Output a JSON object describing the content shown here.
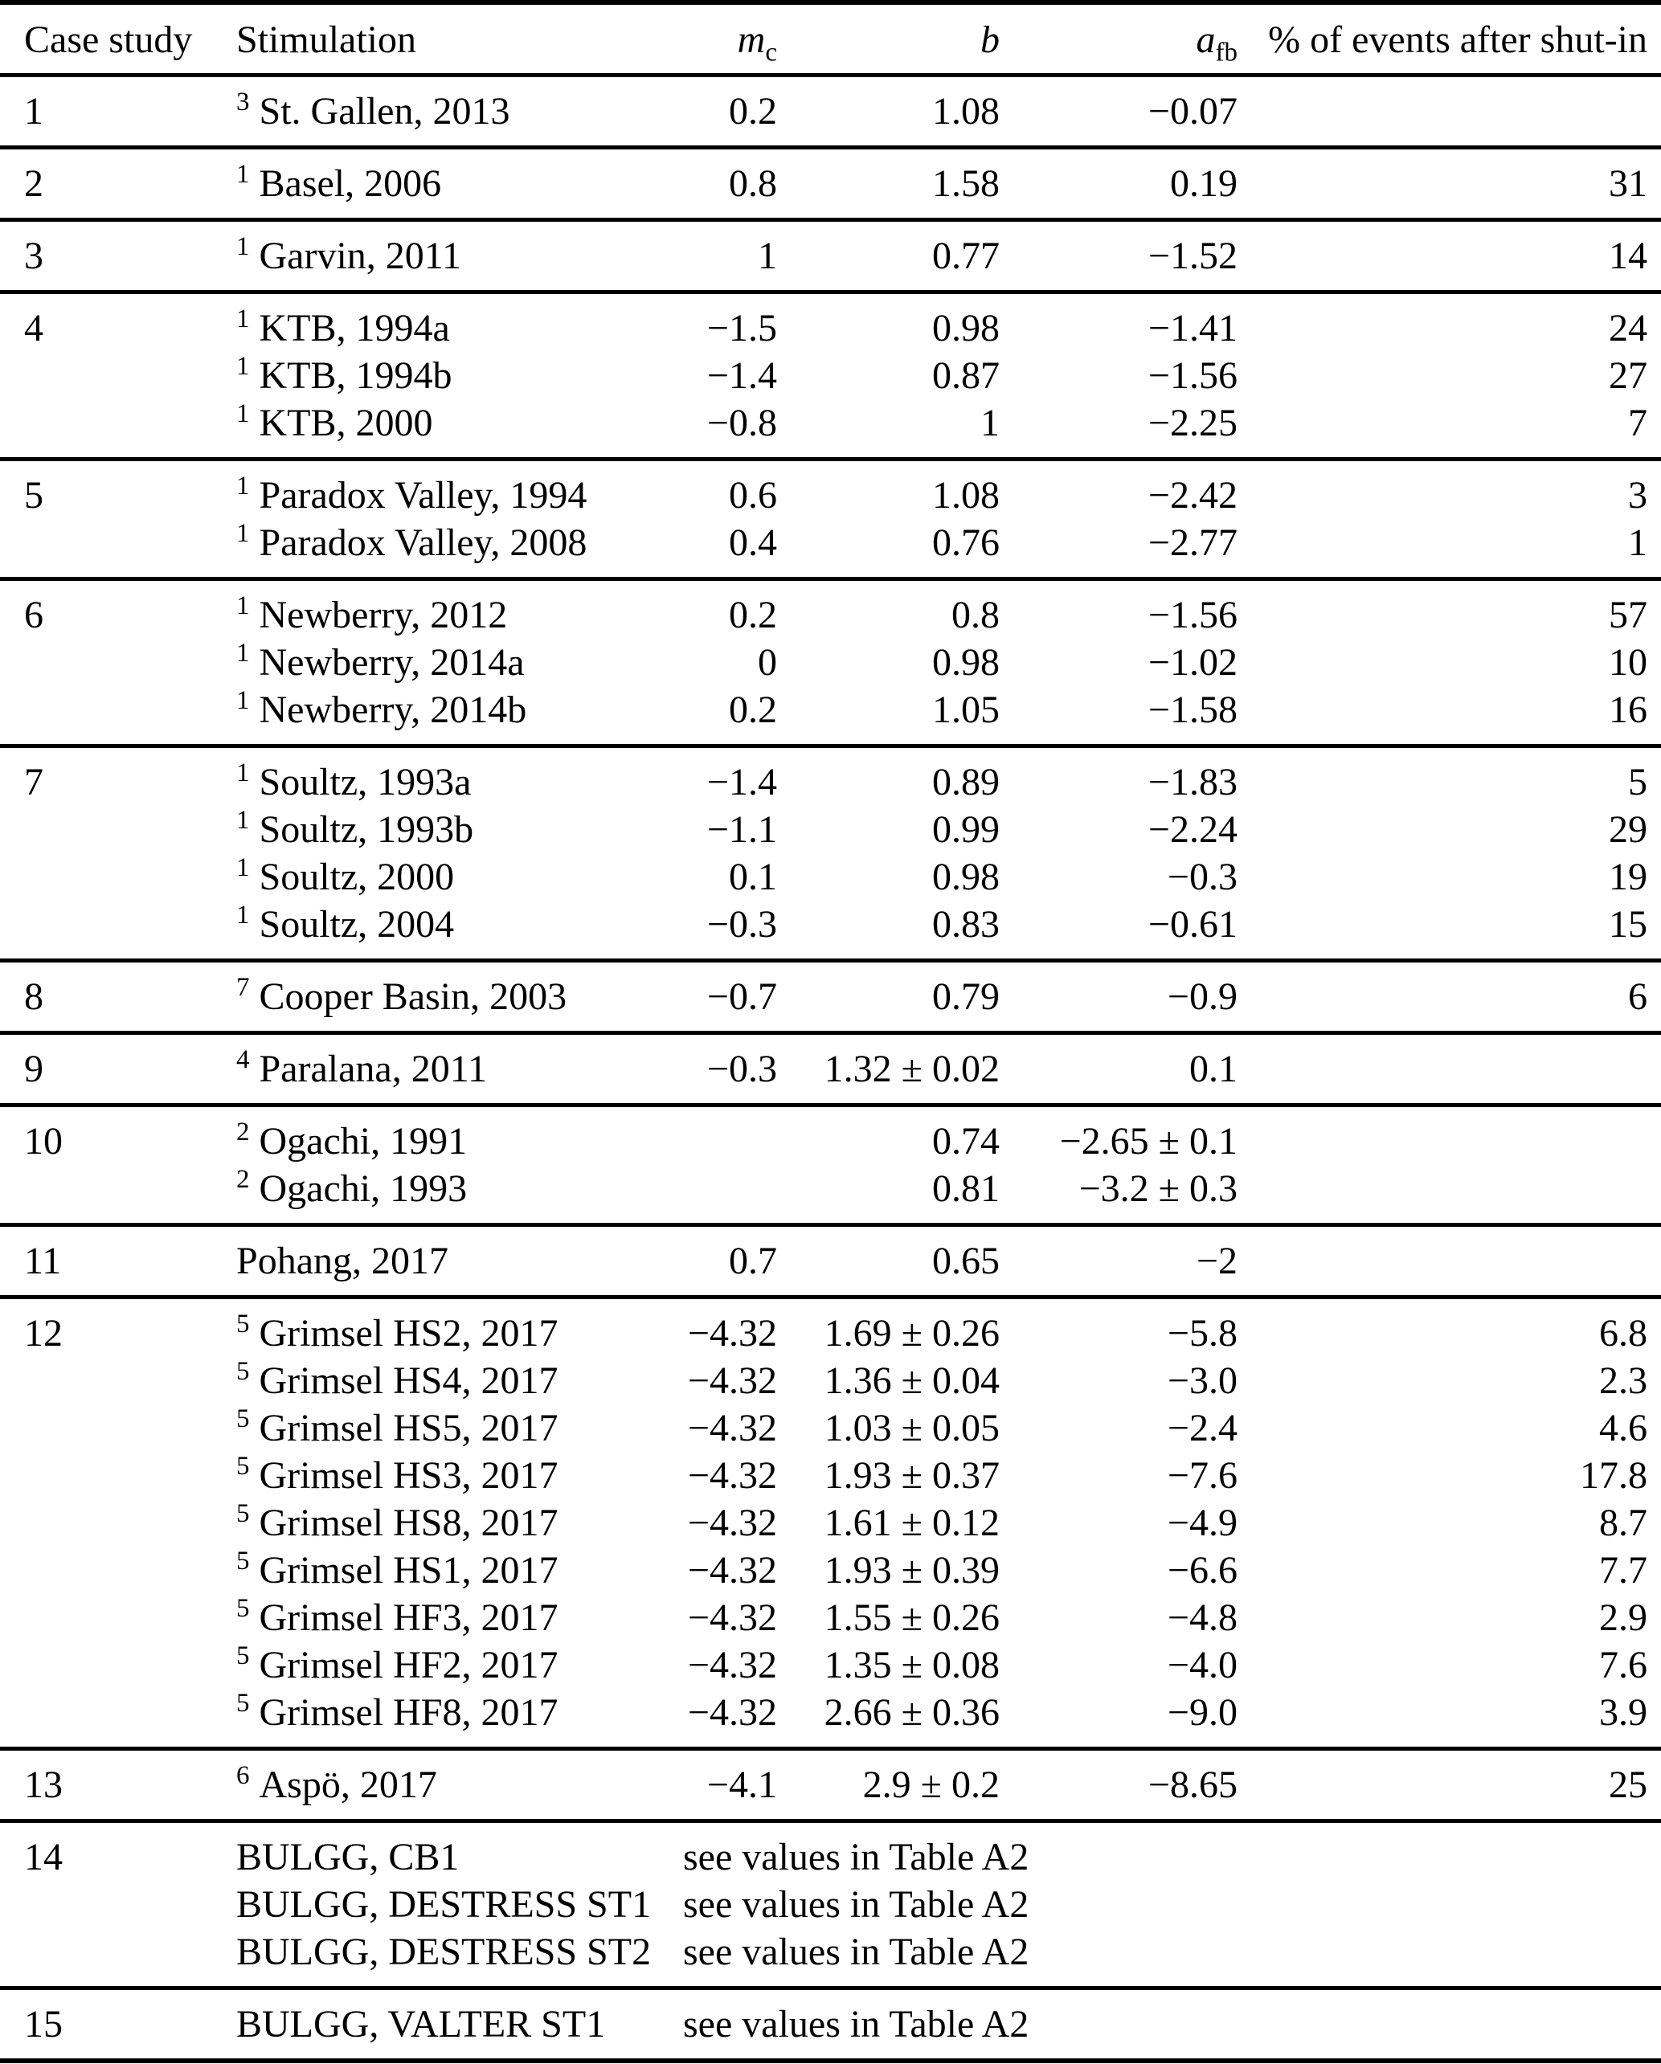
{
  "table": {
    "columns": [
      {
        "key": "case",
        "label": "Case study"
      },
      {
        "key": "stim",
        "label": "Stimulation"
      },
      {
        "key": "mc",
        "label_main": "m",
        "label_sub": "c"
      },
      {
        "key": "b",
        "label": "b"
      },
      {
        "key": "afb",
        "label_main": "a",
        "label_sub": "fb"
      },
      {
        "key": "pct",
        "label": "% of events after shut-in"
      }
    ],
    "see_values_text": "see values in Table A2",
    "groups": [
      {
        "case": "1",
        "rows": [
          {
            "sup": "3",
            "name": "St. Gallen, 2013",
            "mc": "0.2",
            "b": "1.08",
            "afb": "−0.07",
            "pct": ""
          }
        ]
      },
      {
        "case": "2",
        "rows": [
          {
            "sup": "1",
            "name": "Basel, 2006",
            "mc": "0.8",
            "b": "1.58",
            "afb": "0.19",
            "pct": "31"
          }
        ]
      },
      {
        "case": "3",
        "rows": [
          {
            "sup": "1",
            "name": "Garvin, 2011",
            "mc": "1",
            "b": "0.77",
            "afb": "−1.52",
            "pct": "14"
          }
        ]
      },
      {
        "case": "4",
        "rows": [
          {
            "sup": "1",
            "name": "KTB, 1994a",
            "mc": "−1.5",
            "b": "0.98",
            "afb": "−1.41",
            "pct": "24"
          },
          {
            "sup": "1",
            "name": "KTB, 1994b",
            "mc": "−1.4",
            "b": "0.87",
            "afb": "−1.56",
            "pct": "27"
          },
          {
            "sup": "1",
            "name": "KTB, 2000",
            "mc": "−0.8",
            "b": "1",
            "afb": "−2.25",
            "pct": "7"
          }
        ]
      },
      {
        "case": "5",
        "rows": [
          {
            "sup": "1",
            "name": "Paradox Valley, 1994",
            "mc": "0.6",
            "b": "1.08",
            "afb": "−2.42",
            "pct": "3"
          },
          {
            "sup": "1",
            "name": "Paradox Valley, 2008",
            "mc": "0.4",
            "b": "0.76",
            "afb": "−2.77",
            "pct": "1"
          }
        ]
      },
      {
        "case": "6",
        "rows": [
          {
            "sup": "1",
            "name": "Newberry, 2012",
            "mc": "0.2",
            "b": "0.8",
            "afb": "−1.56",
            "pct": "57"
          },
          {
            "sup": "1",
            "name": "Newberry, 2014a",
            "mc": "0",
            "b": "0.98",
            "afb": "−1.02",
            "pct": "10"
          },
          {
            "sup": "1",
            "name": "Newberry, 2014b",
            "mc": "0.2",
            "b": "1.05",
            "afb": "−1.58",
            "pct": "16"
          }
        ]
      },
      {
        "case": "7",
        "rows": [
          {
            "sup": "1",
            "name": "Soultz, 1993a",
            "mc": "−1.4",
            "b": "0.89",
            "afb": "−1.83",
            "pct": "5"
          },
          {
            "sup": "1",
            "name": "Soultz, 1993b",
            "mc": "−1.1",
            "b": "0.99",
            "afb": "−2.24",
            "pct": "29"
          },
          {
            "sup": "1",
            "name": "Soultz, 2000",
            "mc": "0.1",
            "b": "0.98",
            "afb": "−0.3",
            "pct": "19"
          },
          {
            "sup": "1",
            "name": "Soultz, 2004",
            "mc": "−0.3",
            "b": "0.83",
            "afb": "−0.61",
            "pct": "15"
          }
        ]
      },
      {
        "case": "8",
        "rows": [
          {
            "sup": "7",
            "name": "Cooper Basin, 2003",
            "mc": "−0.7",
            "b": "0.79",
            "afb": "−0.9",
            "pct": "6"
          }
        ]
      },
      {
        "case": "9",
        "rows": [
          {
            "sup": "4",
            "name": "Paralana, 2011",
            "mc": "−0.3",
            "b": "1.32 ± 0.02",
            "afb": "0.1",
            "pct": ""
          }
        ]
      },
      {
        "case": "10",
        "rows": [
          {
            "sup": "2",
            "name": "Ogachi, 1991",
            "mc": "",
            "b": "0.74",
            "afb": "−2.65 ± 0.1",
            "pct": ""
          },
          {
            "sup": "2",
            "name": "Ogachi, 1993",
            "mc": "",
            "b": "0.81",
            "afb": "−3.2 ± 0.3",
            "pct": ""
          }
        ]
      },
      {
        "case": "11",
        "rows": [
          {
            "sup": "",
            "name": "Pohang, 2017",
            "mc": "0.7",
            "b": "0.65",
            "afb": "−2",
            "pct": ""
          }
        ]
      },
      {
        "case": "12",
        "rows": [
          {
            "sup": "5",
            "name": "Grimsel HS2, 2017",
            "mc": "−4.32",
            "b": "1.69 ± 0.26",
            "afb": "−5.8",
            "pct": "6.8"
          },
          {
            "sup": "5",
            "name": "Grimsel HS4, 2017",
            "mc": "−4.32",
            "b": "1.36 ± 0.04",
            "afb": "−3.0",
            "pct": "2.3"
          },
          {
            "sup": "5",
            "name": "Grimsel HS5, 2017",
            "mc": "−4.32",
            "b": "1.03 ± 0.05",
            "afb": "−2.4",
            "pct": "4.6"
          },
          {
            "sup": "5",
            "name": "Grimsel HS3, 2017",
            "mc": "−4.32",
            "b": "1.93 ± 0.37",
            "afb": "−7.6",
            "pct": "17.8"
          },
          {
            "sup": "5",
            "name": "Grimsel HS8, 2017",
            "mc": "−4.32",
            "b": "1.61 ± 0.12",
            "afb": "−4.9",
            "pct": "8.7"
          },
          {
            "sup": "5",
            "name": "Grimsel HS1, 2017",
            "mc": "−4.32",
            "b": "1.93 ± 0.39",
            "afb": "−6.6",
            "pct": "7.7"
          },
          {
            "sup": "5",
            "name": "Grimsel HF3, 2017",
            "mc": "−4.32",
            "b": "1.55 ± 0.26",
            "afb": "−4.8",
            "pct": "2.9"
          },
          {
            "sup": "5",
            "name": "Grimsel HF2, 2017",
            "mc": "−4.32",
            "b": "1.35 ± 0.08",
            "afb": "−4.0",
            "pct": "7.6"
          },
          {
            "sup": "5",
            "name": "Grimsel HF8, 2017",
            "mc": "−4.32",
            "b": "2.66 ± 0.36",
            "afb": "−9.0",
            "pct": "3.9"
          }
        ]
      },
      {
        "case": "13",
        "rows": [
          {
            "sup": "6",
            "name": "Aspö, 2017",
            "mc": "−4.1",
            "b": "2.9 ± 0.2",
            "afb": "−8.65",
            "pct": "25"
          }
        ]
      },
      {
        "case": "14",
        "rows": [
          {
            "sup": "",
            "name": "BULGG, CB1",
            "see": true
          },
          {
            "sup": "",
            "name": "BULGG, DESTRESS ST1",
            "see": true
          },
          {
            "sup": "",
            "name": "BULGG, DESTRESS ST2",
            "see": true
          }
        ]
      },
      {
        "case": "15",
        "rows": [
          {
            "sup": "",
            "name": "BULGG, VALTER ST1",
            "see": true
          }
        ]
      }
    ]
  }
}
